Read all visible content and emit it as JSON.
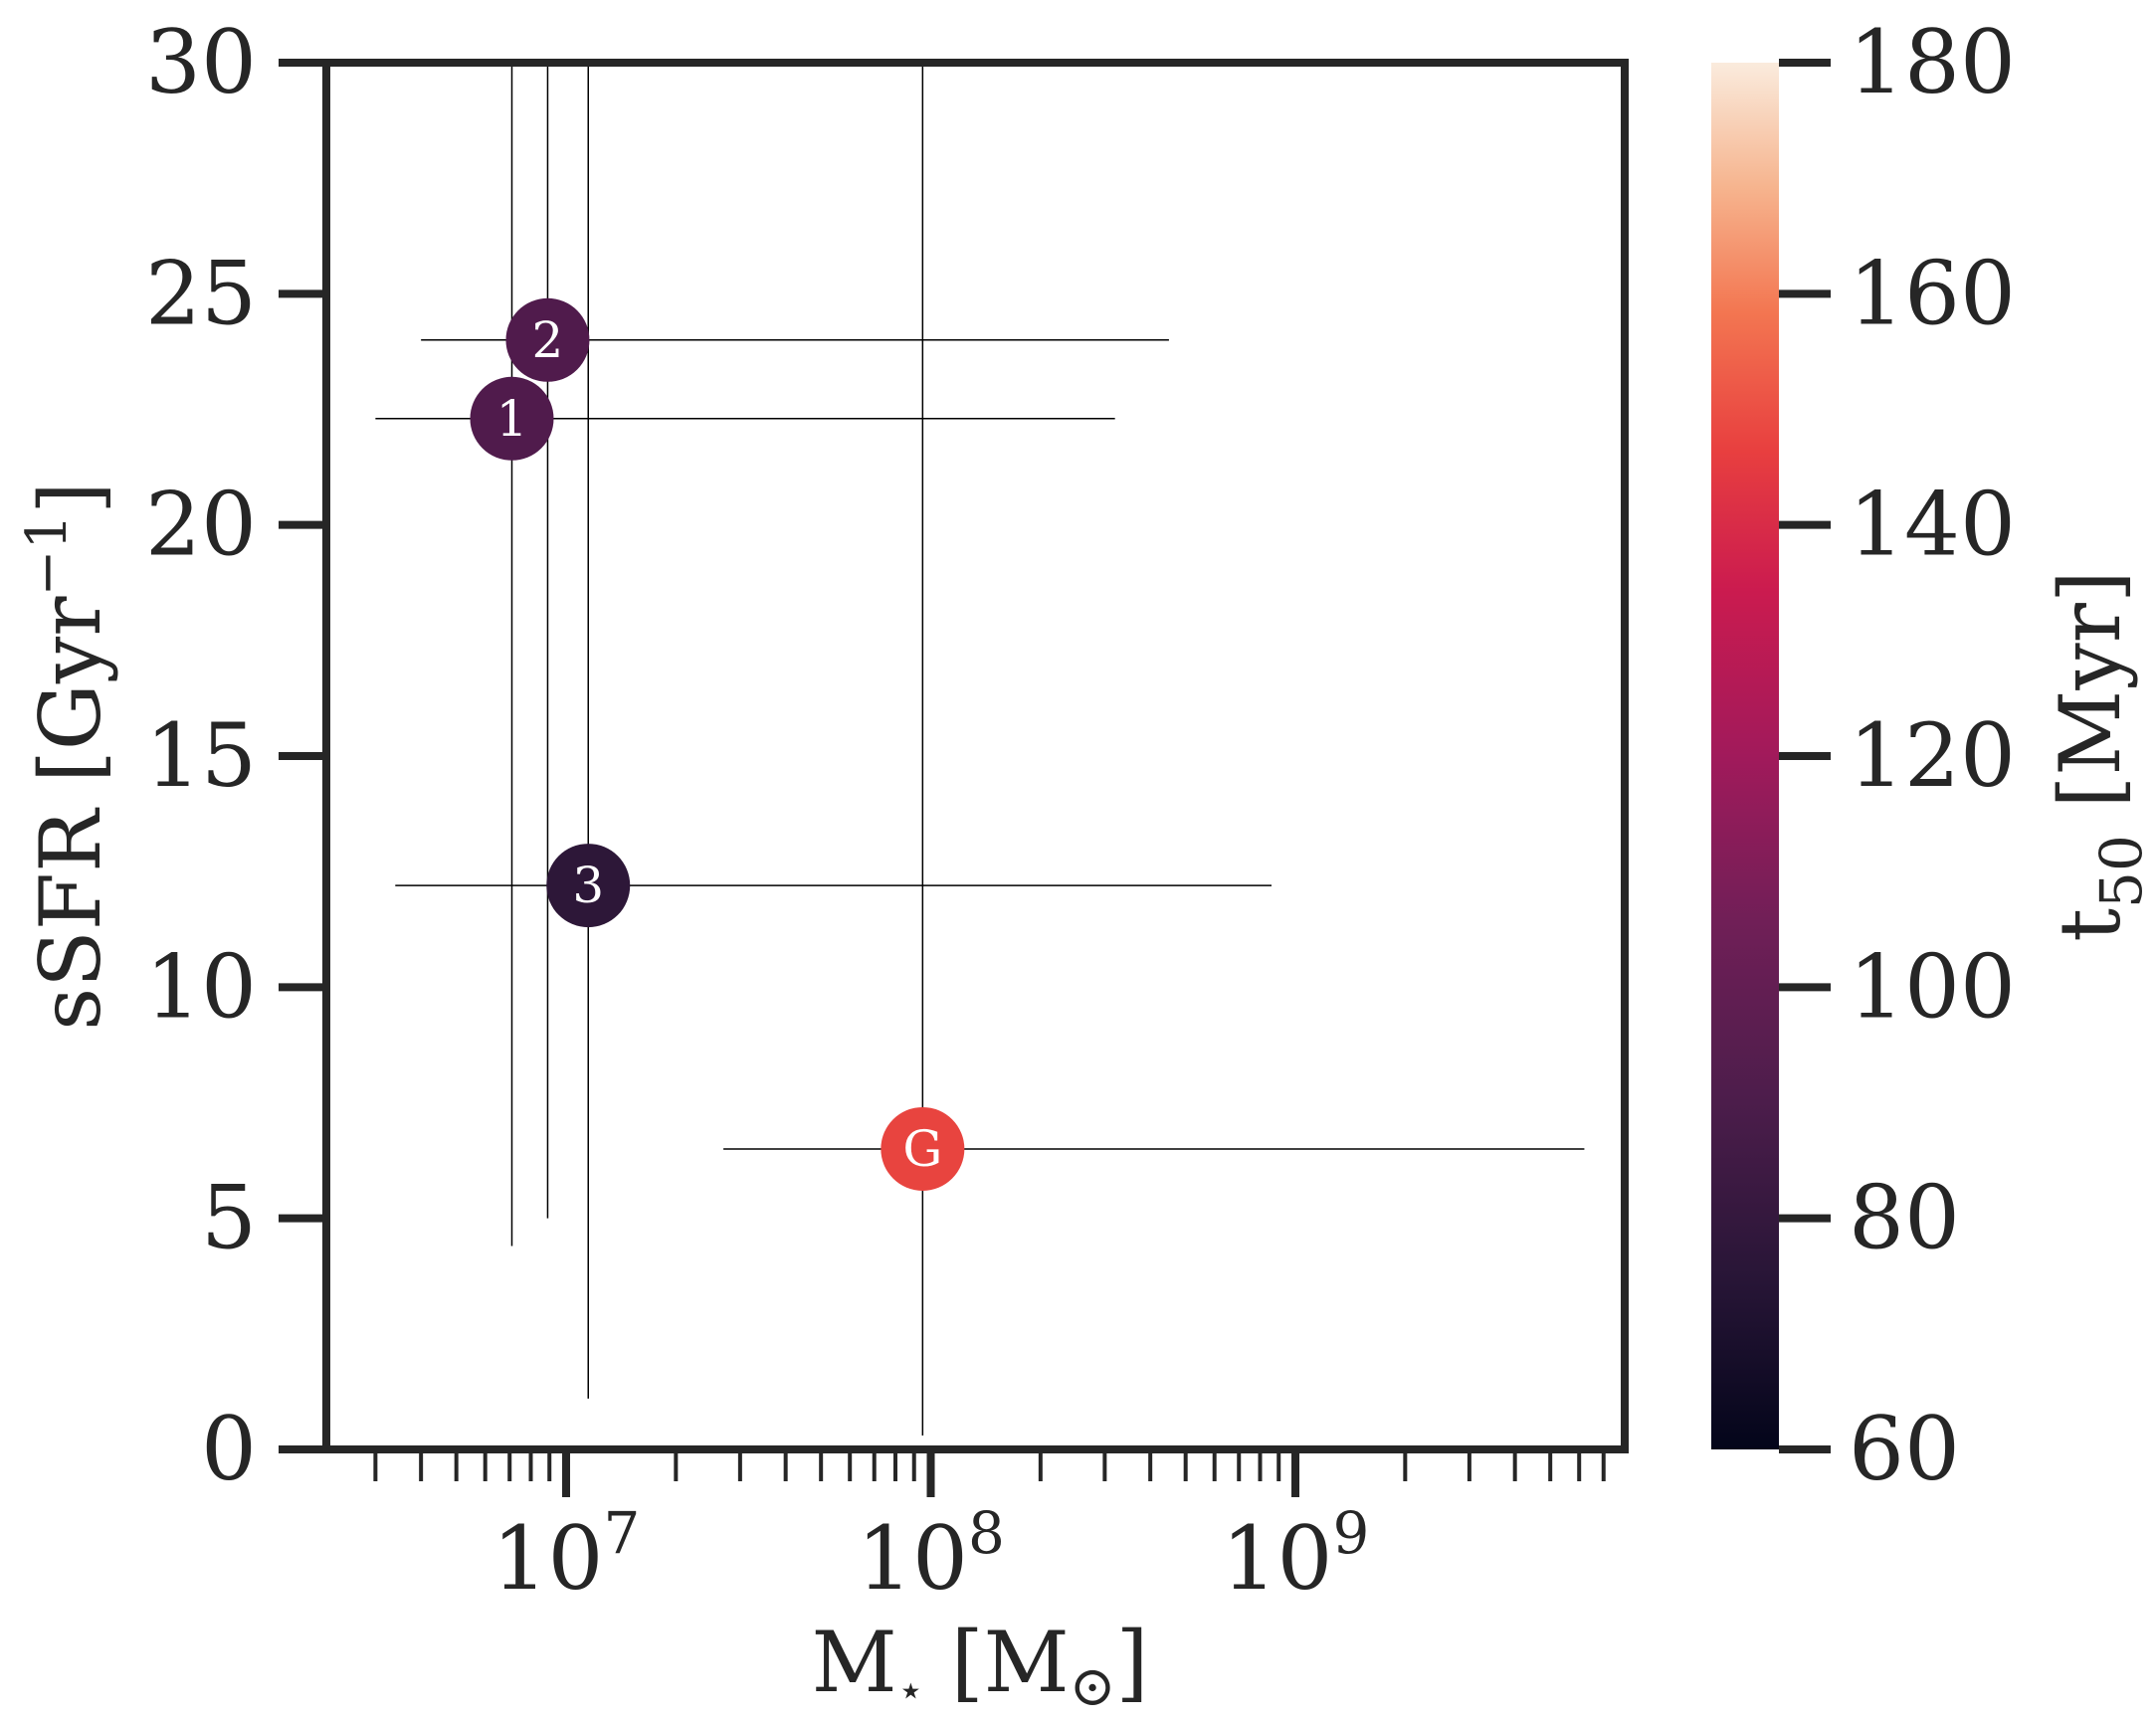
{
  "chart_data": {
    "type": "scatter",
    "x_scale": "log",
    "xlim": [
      2200000,
      8000000000
    ],
    "ylim": [
      0,
      30
    ],
    "x_ticks": [
      {
        "value": 10000000,
        "base": "10",
        "exp": "7"
      },
      {
        "value": 100000000,
        "base": "10",
        "exp": "8"
      },
      {
        "value": 1000000000,
        "base": "10",
        "exp": "9"
      }
    ],
    "y_ticks": [
      "0",
      "5",
      "10",
      "15",
      "20",
      "25",
      "30"
    ],
    "xlabel": {
      "prefix": "M",
      "sub": "⋆",
      "suffix": " [M",
      "sun": "⊙",
      "close": "]"
    },
    "ylabel": {
      "prefix": "sSFR [Gyr",
      "sup": "−1",
      "suffix": "]"
    },
    "colorbar": {
      "label": {
        "prefix": "t",
        "sub": "50",
        "suffix": " [Myr]"
      },
      "range": [
        60,
        180
      ],
      "ticks": [
        "60",
        "80",
        "100",
        "120",
        "140",
        "160",
        "180"
      ],
      "colormap": "rocket"
    },
    "points": [
      {
        "label": "1",
        "x": 7100000,
        "y": 22.3,
        "x_err_low": 3000000,
        "x_err_high": 320000000,
        "y_err_low": 4.4,
        "y_err_high": 30,
        "t50": 91,
        "color": "#501b4c"
      },
      {
        "label": "2",
        "x": 8900000,
        "y": 24.0,
        "x_err_low": 4000000,
        "x_err_high": 450000000,
        "y_err_low": 5.0,
        "y_err_high": 30,
        "t50": 90,
        "color": "#501b4c"
      },
      {
        "label": "3",
        "x": 11500000,
        "y": 12.2,
        "x_err_low": 3400000,
        "x_err_high": 860000000,
        "y_err_low": 1.1,
        "y_err_high": 30,
        "t50": 78,
        "color": "#2d1738"
      },
      {
        "label": "G",
        "x": 95000000,
        "y": 6.5,
        "x_err_low": 27000000,
        "x_err_high": 6200000000,
        "y_err_low": 0.3,
        "y_err_high": 30,
        "t50": 140,
        "color": "#e8443f"
      }
    ]
  }
}
